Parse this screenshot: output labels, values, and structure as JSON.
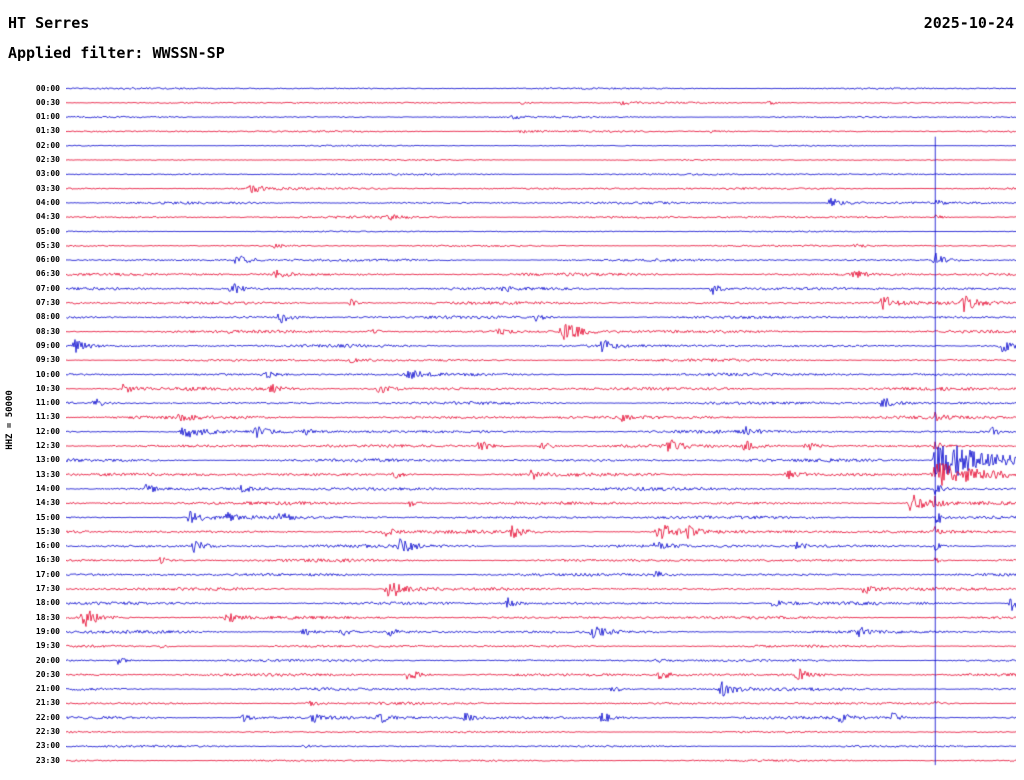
{
  "header": {
    "station": "HT Serres",
    "date": "2025-10-24",
    "filter_label": "Applied filter: WWSSN-SP"
  },
  "axis": {
    "y_label": "HHZ = 50000"
  },
  "colors": {
    "red": "#e4002b",
    "blue": "#0000cd",
    "marker": "#0000cd",
    "text": "#000000",
    "background": "#ffffff"
  },
  "chart_data": {
    "type": "line",
    "title": "Helicorder seismogram HT Serres",
    "station": "HT Serres",
    "date": "2025-10-24",
    "filter": "WWSSN-SP",
    "channel_scale": "HHZ = 50000",
    "row_interval_min": 30,
    "rows_start": "00:00",
    "rows_end": "23:30",
    "marker_line": {
      "x": 0.915,
      "from_row": 4
    },
    "rows": [
      {
        "label": "00:00",
        "color": "blue",
        "noise": 1.0,
        "events": []
      },
      {
        "label": "00:30",
        "color": "red",
        "noise": 1.0,
        "events": [
          {
            "x": 0.48,
            "amp": 2,
            "w": 0.01
          },
          {
            "x": 0.585,
            "amp": 2,
            "w": 0.008
          },
          {
            "x": 0.74,
            "amp": 2,
            "w": 0.008
          }
        ]
      },
      {
        "label": "01:00",
        "color": "blue",
        "noise": 1.0,
        "events": [
          {
            "x": 0.47,
            "amp": 2,
            "w": 0.008
          }
        ]
      },
      {
        "label": "01:30",
        "color": "red",
        "noise": 1.1,
        "events": [
          {
            "x": 0.48,
            "amp": 2.5,
            "w": 0.01
          },
          {
            "x": 0.68,
            "amp": 2,
            "w": 0.008
          }
        ]
      },
      {
        "label": "02:00",
        "color": "blue",
        "noise": 0.75,
        "events": []
      },
      {
        "label": "02:30",
        "color": "red",
        "noise": 0.75,
        "events": []
      },
      {
        "label": "03:00",
        "color": "blue",
        "noise": 1.1,
        "events": []
      },
      {
        "label": "03:30",
        "color": "red",
        "noise": 1.4,
        "events": [
          {
            "x": 0.195,
            "amp": 4,
            "w": 0.012
          }
        ]
      },
      {
        "label": "04:00",
        "color": "blue",
        "noise": 1.4,
        "events": [
          {
            "x": 0.805,
            "amp": 5,
            "w": 0.012
          },
          {
            "x": 0.915,
            "amp": 3,
            "w": 0.006
          }
        ]
      },
      {
        "label": "04:30",
        "color": "red",
        "noise": 1.4,
        "events": [
          {
            "x": 0.34,
            "amp": 3,
            "w": 0.008
          },
          {
            "x": 0.915,
            "amp": 3,
            "w": 0.006
          }
        ]
      },
      {
        "label": "05:00",
        "color": "blue",
        "noise": 0.75,
        "events": []
      },
      {
        "label": "05:30",
        "color": "red",
        "noise": 1.0,
        "events": [
          {
            "x": 0.22,
            "amp": 3,
            "w": 0.008
          },
          {
            "x": 0.83,
            "amp": 3,
            "w": 0.008
          }
        ]
      },
      {
        "label": "06:00",
        "color": "blue",
        "noise": 1.5,
        "events": [
          {
            "x": 0.18,
            "amp": 5,
            "w": 0.012
          },
          {
            "x": 0.915,
            "amp": 7,
            "w": 0.009
          }
        ]
      },
      {
        "label": "06:30",
        "color": "red",
        "noise": 1.7,
        "events": [
          {
            "x": 0.22,
            "amp": 5,
            "w": 0.01
          },
          {
            "x": 0.83,
            "amp": 4,
            "w": 0.01
          }
        ]
      },
      {
        "label": "07:00",
        "color": "blue",
        "noise": 1.7,
        "events": [
          {
            "x": 0.175,
            "amp": 6,
            "w": 0.012
          },
          {
            "x": 0.46,
            "amp": 4,
            "w": 0.008
          },
          {
            "x": 0.68,
            "amp": 6,
            "w": 0.008
          }
        ]
      },
      {
        "label": "07:30",
        "color": "red",
        "noise": 1.7,
        "events": [
          {
            "x": 0.3,
            "amp": 4,
            "w": 0.008
          },
          {
            "x": 0.86,
            "amp": 8,
            "w": 0.012
          },
          {
            "x": 0.945,
            "amp": 8,
            "w": 0.012
          }
        ]
      },
      {
        "label": "08:00",
        "color": "blue",
        "noise": 1.7,
        "events": [
          {
            "x": 0.225,
            "amp": 6,
            "w": 0.01
          },
          {
            "x": 0.495,
            "amp": 4,
            "w": 0.008
          }
        ]
      },
      {
        "label": "08:30",
        "color": "red",
        "noise": 1.7,
        "events": [
          {
            "x": 0.32,
            "amp": 4,
            "w": 0.008
          },
          {
            "x": 0.455,
            "amp": 4,
            "w": 0.008
          },
          {
            "x": 0.525,
            "amp": 9,
            "w": 0.018
          }
        ]
      },
      {
        "label": "09:00",
        "color": "blue",
        "noise": 1.7,
        "events": [
          {
            "x": 0.01,
            "amp": 7,
            "w": 0.01
          },
          {
            "x": 0.565,
            "amp": 6,
            "w": 0.01
          },
          {
            "x": 0.985,
            "amp": 7,
            "w": 0.01
          }
        ]
      },
      {
        "label": "09:30",
        "color": "red",
        "noise": 1.5,
        "events": [
          {
            "x": 0.3,
            "amp": 3,
            "w": 0.008
          }
        ]
      },
      {
        "label": "10:00",
        "color": "blue",
        "noise": 1.7,
        "events": [
          {
            "x": 0.21,
            "amp": 4,
            "w": 0.008
          },
          {
            "x": 0.36,
            "amp": 6,
            "w": 0.01
          }
        ]
      },
      {
        "label": "10:30",
        "color": "red",
        "noise": 1.9,
        "events": [
          {
            "x": 0.06,
            "amp": 5,
            "w": 0.01
          },
          {
            "x": 0.215,
            "amp": 5,
            "w": 0.01
          },
          {
            "x": 0.33,
            "amp": 5,
            "w": 0.01
          }
        ]
      },
      {
        "label": "11:00",
        "color": "blue",
        "noise": 1.7,
        "events": [
          {
            "x": 0.03,
            "amp": 5,
            "w": 0.008
          },
          {
            "x": 0.86,
            "amp": 6,
            "w": 0.01
          }
        ]
      },
      {
        "label": "11:30",
        "color": "red",
        "noise": 1.9,
        "events": [
          {
            "x": 0.12,
            "amp": 4,
            "w": 0.008
          },
          {
            "x": 0.585,
            "amp": 4,
            "w": 0.008
          },
          {
            "x": 0.915,
            "amp": 4,
            "w": 0.006
          }
        ]
      },
      {
        "label": "12:00",
        "color": "blue",
        "noise": 1.9,
        "events": [
          {
            "x": 0.125,
            "amp": 8,
            "w": 0.015
          },
          {
            "x": 0.2,
            "amp": 6,
            "w": 0.01
          },
          {
            "x": 0.25,
            "amp": 4,
            "w": 0.008
          },
          {
            "x": 0.715,
            "amp": 4,
            "w": 0.008
          },
          {
            "x": 0.975,
            "amp": 5,
            "w": 0.008
          }
        ]
      },
      {
        "label": "12:30",
        "color": "red",
        "noise": 1.9,
        "events": [
          {
            "x": 0.435,
            "amp": 6,
            "w": 0.01
          },
          {
            "x": 0.5,
            "amp": 5,
            "w": 0.01
          },
          {
            "x": 0.635,
            "amp": 6,
            "w": 0.01
          },
          {
            "x": 0.715,
            "amp": 5,
            "w": 0.01
          },
          {
            "x": 0.78,
            "amp": 5,
            "w": 0.01
          },
          {
            "x": 0.915,
            "amp": 5,
            "w": 0.006
          }
        ]
      },
      {
        "label": "13:00",
        "color": "blue",
        "noise": 1.9,
        "events": [
          {
            "x": 0.915,
            "amp": 34,
            "w": 0.008,
            "coda": 0.035
          },
          {
            "x": 0.96,
            "amp": 8,
            "w": 0.01,
            "coda": 0.06
          },
          {
            "x": 0.975,
            "amp": 7,
            "w": 0.008
          }
        ]
      },
      {
        "label": "13:30",
        "color": "red",
        "noise": 1.9,
        "events": [
          {
            "x": 0.345,
            "amp": 4,
            "w": 0.008
          },
          {
            "x": 0.49,
            "amp": 5,
            "w": 0.008
          },
          {
            "x": 0.76,
            "amp": 6,
            "w": 0.01
          },
          {
            "x": 0.915,
            "amp": 14,
            "w": 0.012,
            "coda": 0.04
          }
        ]
      },
      {
        "label": "14:00",
        "color": "blue",
        "noise": 1.9,
        "events": [
          {
            "x": 0.085,
            "amp": 5,
            "w": 0.008
          },
          {
            "x": 0.185,
            "amp": 4,
            "w": 0.008
          },
          {
            "x": 0.915,
            "amp": 6,
            "w": 0.006
          }
        ]
      },
      {
        "label": "14:30",
        "color": "red",
        "noise": 1.9,
        "events": [
          {
            "x": 0.36,
            "amp": 5,
            "w": 0.008
          },
          {
            "x": 0.89,
            "amp": 10,
            "w": 0.015
          },
          {
            "x": 0.915,
            "amp": 8,
            "w": 0.008
          }
        ]
      },
      {
        "label": "15:00",
        "color": "blue",
        "noise": 1.9,
        "events": [
          {
            "x": 0.13,
            "amp": 7,
            "w": 0.012
          },
          {
            "x": 0.17,
            "amp": 5,
            "w": 0.008
          },
          {
            "x": 0.225,
            "amp": 5,
            "w": 0.008
          },
          {
            "x": 0.915,
            "amp": 16,
            "w": 0.003,
            "coda": 0.004
          }
        ]
      },
      {
        "label": "15:30",
        "color": "red",
        "noise": 1.9,
        "events": [
          {
            "x": 0.335,
            "amp": 5,
            "w": 0.008
          },
          {
            "x": 0.47,
            "amp": 6,
            "w": 0.01
          },
          {
            "x": 0.625,
            "amp": 9,
            "w": 0.015
          },
          {
            "x": 0.655,
            "amp": 7,
            "w": 0.01
          },
          {
            "x": 0.915,
            "amp": 5,
            "w": 0.005
          }
        ]
      },
      {
        "label": "16:00",
        "color": "blue",
        "noise": 1.9,
        "events": [
          {
            "x": 0.135,
            "amp": 6,
            "w": 0.01
          },
          {
            "x": 0.35,
            "amp": 8,
            "w": 0.012
          },
          {
            "x": 0.62,
            "amp": 5,
            "w": 0.008
          },
          {
            "x": 0.77,
            "amp": 4,
            "w": 0.008
          },
          {
            "x": 0.915,
            "amp": 5,
            "w": 0.004
          }
        ]
      },
      {
        "label": "16:30",
        "color": "red",
        "noise": 1.7,
        "events": [
          {
            "x": 0.1,
            "amp": 4,
            "w": 0.008
          },
          {
            "x": 0.915,
            "amp": 4,
            "w": 0.004
          }
        ]
      },
      {
        "label": "17:00",
        "color": "blue",
        "noise": 1.7,
        "events": [
          {
            "x": 0.62,
            "amp": 4,
            "w": 0.008
          }
        ]
      },
      {
        "label": "17:30",
        "color": "red",
        "noise": 1.7,
        "events": [
          {
            "x": 0.34,
            "amp": 11,
            "w": 0.015
          },
          {
            "x": 0.84,
            "amp": 5,
            "w": 0.01
          }
        ]
      },
      {
        "label": "18:00",
        "color": "blue",
        "noise": 1.7,
        "events": [
          {
            "x": 0.465,
            "amp": 5,
            "w": 0.008
          },
          {
            "x": 0.745,
            "amp": 6,
            "w": 0.01
          },
          {
            "x": 0.995,
            "amp": 8,
            "w": 0.008
          }
        ]
      },
      {
        "label": "18:30",
        "color": "red",
        "noise": 1.7,
        "events": [
          {
            "x": 0.02,
            "amp": 9,
            "w": 0.015
          },
          {
            "x": 0.17,
            "amp": 5,
            "w": 0.01
          }
        ]
      },
      {
        "label": "19:00",
        "color": "blue",
        "noise": 1.7,
        "events": [
          {
            "x": 0.25,
            "amp": 5,
            "w": 0.008
          },
          {
            "x": 0.29,
            "amp": 4,
            "w": 0.008
          },
          {
            "x": 0.34,
            "amp": 4,
            "w": 0.008
          },
          {
            "x": 0.555,
            "amp": 6,
            "w": 0.012
          },
          {
            "x": 0.835,
            "amp": 5,
            "w": 0.008
          }
        ]
      },
      {
        "label": "19:30",
        "color": "red",
        "noise": 1.4,
        "events": [
          {
            "x": 0.1,
            "amp": 3,
            "w": 0.006
          }
        ]
      },
      {
        "label": "20:00",
        "color": "blue",
        "noise": 1.4,
        "events": [
          {
            "x": 0.055,
            "amp": 4,
            "w": 0.008
          },
          {
            "x": 0.62,
            "amp": 3,
            "w": 0.006
          }
        ]
      },
      {
        "label": "20:30",
        "color": "red",
        "noise": 1.7,
        "events": [
          {
            "x": 0.36,
            "amp": 6,
            "w": 0.012
          },
          {
            "x": 0.625,
            "amp": 5,
            "w": 0.01
          },
          {
            "x": 0.77,
            "amp": 7,
            "w": 0.012
          }
        ]
      },
      {
        "label": "21:00",
        "color": "blue",
        "noise": 1.7,
        "events": [
          {
            "x": 0.575,
            "amp": 4,
            "w": 0.008
          },
          {
            "x": 0.69,
            "amp": 8,
            "w": 0.012
          }
        ]
      },
      {
        "label": "21:30",
        "color": "red",
        "noise": 1.4,
        "events": [
          {
            "x": 0.255,
            "amp": 4,
            "w": 0.008
          },
          {
            "x": 0.915,
            "amp": 3,
            "w": 0.004
          }
        ]
      },
      {
        "label": "22:00",
        "color": "blue",
        "noise": 1.7,
        "events": [
          {
            "x": 0.185,
            "amp": 5,
            "w": 0.01
          },
          {
            "x": 0.26,
            "amp": 5,
            "w": 0.01
          },
          {
            "x": 0.33,
            "amp": 6,
            "w": 0.01
          },
          {
            "x": 0.42,
            "amp": 5,
            "w": 0.008
          },
          {
            "x": 0.565,
            "amp": 6,
            "w": 0.01
          },
          {
            "x": 0.815,
            "amp": 5,
            "w": 0.008
          },
          {
            "x": 0.87,
            "amp": 5,
            "w": 0.008
          }
        ]
      },
      {
        "label": "22:30",
        "color": "red",
        "noise": 1.1,
        "events": []
      },
      {
        "label": "23:00",
        "color": "blue",
        "noise": 1.1,
        "events": [
          {
            "x": 0.25,
            "amp": 3,
            "w": 0.006
          }
        ]
      },
      {
        "label": "23:30",
        "color": "red",
        "noise": 1.1,
        "events": []
      }
    ]
  }
}
